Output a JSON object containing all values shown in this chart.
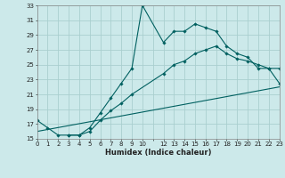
{
  "xlabel": "Humidex (Indice chaleur)",
  "bg_color": "#cce9ea",
  "grid_color": "#aacfcf",
  "line_color": "#006060",
  "line1_x": [
    0,
    1,
    2,
    3,
    4,
    5,
    6,
    7,
    8,
    9,
    10,
    12,
    13,
    14,
    15,
    16,
    17,
    18,
    19,
    20,
    21,
    22,
    23
  ],
  "line1_y": [
    17.5,
    16.5,
    15.5,
    15.5,
    15.5,
    16.5,
    18.5,
    20.5,
    22.5,
    24.5,
    33.0,
    28.0,
    29.5,
    29.5,
    30.5,
    30.0,
    29.5,
    27.5,
    26.5,
    26.0,
    24.5,
    24.5,
    24.5
  ],
  "line2_x": [
    3,
    4,
    5,
    6,
    7,
    8,
    9,
    12,
    13,
    14,
    15,
    16,
    17,
    18,
    19,
    20,
    21,
    22,
    23
  ],
  "line2_y": [
    15.5,
    15.5,
    16.0,
    17.5,
    18.8,
    19.8,
    21.0,
    23.8,
    25.0,
    25.5,
    26.5,
    27.0,
    27.5,
    26.5,
    25.8,
    25.5,
    25.0,
    24.5,
    22.5
  ],
  "line3_x": [
    0,
    23
  ],
  "line3_y": [
    16.0,
    22.0
  ],
  "xlim": [
    0,
    23
  ],
  "ylim": [
    15,
    33
  ],
  "yticks": [
    15,
    17,
    19,
    21,
    23,
    25,
    27,
    29,
    31,
    33
  ],
  "xtick_labels": [
    "0",
    "1",
    "2",
    "3",
    "4",
    "5",
    "6",
    "7",
    "8",
    "9",
    "10",
    "",
    "12",
    "13",
    "14",
    "15",
    "16",
    "17",
    "18",
    "19",
    "20",
    "21",
    "22",
    "23"
  ],
  "tick_fontsize": 5.0,
  "xlabel_fontsize": 6.0
}
